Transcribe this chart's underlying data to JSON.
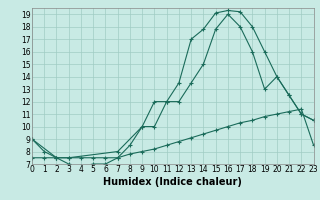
{
  "xlabel": "Humidex (Indice chaleur)",
  "bg_color": "#c8eae4",
  "grid_color": "#a0ccC4",
  "line_color": "#1a6b5a",
  "line1_x": [
    0,
    1,
    2,
    3,
    4,
    5,
    6,
    7,
    8,
    9,
    10,
    11,
    12,
    13,
    14,
    15,
    16,
    17,
    18,
    19,
    20,
    21,
    22,
    23
  ],
  "line1_y": [
    9,
    8,
    7.5,
    7,
    6.8,
    7,
    7,
    7.5,
    8.5,
    10,
    12,
    12,
    13.5,
    17,
    17.8,
    19.1,
    19.3,
    19.2,
    18,
    16,
    14,
    12.5,
    11,
    10.5
  ],
  "line2_x": [
    0,
    1,
    2,
    3,
    4,
    5,
    6,
    7,
    8,
    9,
    10,
    11,
    12,
    13,
    14,
    15,
    16,
    17,
    18,
    19,
    20,
    21,
    22,
    23
  ],
  "line2_y": [
    7.5,
    7.5,
    7.5,
    7.5,
    7.5,
    7.5,
    7.5,
    7.5,
    7.8,
    8.0,
    8.2,
    8.5,
    8.8,
    9.1,
    9.4,
    9.7,
    10.0,
    10.3,
    10.5,
    10.8,
    11.0,
    11.2,
    11.4,
    8.5
  ],
  "line3_x": [
    0,
    2,
    3,
    7,
    9,
    10,
    11,
    12,
    13,
    14,
    15,
    16,
    17,
    18,
    19,
    20,
    21,
    22,
    23
  ],
  "line3_y": [
    9,
    7.5,
    7.5,
    8.0,
    10,
    10,
    12,
    12,
    13.5,
    15,
    17.8,
    19.0,
    18,
    16,
    13,
    14,
    12.5,
    11,
    10.5
  ],
  "xlim": [
    0,
    23
  ],
  "ylim": [
    7,
    19.5
  ],
  "yticks": [
    7,
    8,
    9,
    10,
    11,
    12,
    13,
    14,
    15,
    16,
    17,
    18,
    19
  ],
  "xticks": [
    0,
    1,
    2,
    3,
    4,
    5,
    6,
    7,
    8,
    9,
    10,
    11,
    12,
    13,
    14,
    15,
    16,
    17,
    18,
    19,
    20,
    21,
    22,
    23
  ],
  "tick_fontsize": 5.5,
  "xlabel_fontsize": 7.0
}
